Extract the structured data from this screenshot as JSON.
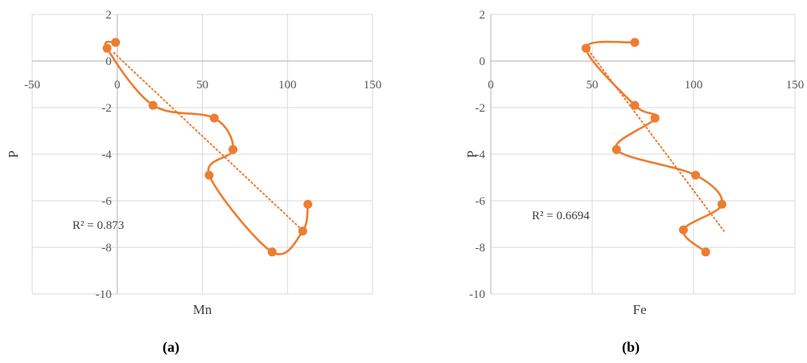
{
  "chart_data": [
    {
      "type": "scatter",
      "caption": "(a)",
      "xlabel": "Mn",
      "ylabel": "P",
      "xlim": [
        -50,
        150
      ],
      "ylim": [
        -10,
        2
      ],
      "xticks": [
        -50,
        0,
        50,
        100,
        150
      ],
      "yticks": [
        -10,
        -8,
        -6,
        -4,
        -2,
        0,
        2
      ],
      "grid": true,
      "series": [
        {
          "style": "smoothed line with markers",
          "color": "#ED7D31",
          "x": [
            -1,
            -6,
            21,
            57,
            68,
            54,
            91,
            109,
            112
          ],
          "y": [
            0.8,
            0.55,
            -1.9,
            -2.45,
            -3.8,
            -4.9,
            -8.2,
            -7.3,
            -6.15
          ]
        }
      ],
      "trendline": {
        "style": "linear dotted",
        "color": "#ED7D31",
        "x": [
          -2,
          110
        ],
        "y": [
          0.35,
          -7.35
        ]
      },
      "annotation": "R² = 0.873"
    },
    {
      "type": "scatter",
      "caption": "(b)",
      "xlabel": "Fe",
      "ylabel": "P",
      "xlim": [
        0,
        150
      ],
      "ylim": [
        -10,
        2
      ],
      "xticks": [
        0,
        50,
        100,
        150
      ],
      "yticks": [
        -10,
        -8,
        -6,
        -4,
        -2,
        0,
        2
      ],
      "grid": true,
      "series": [
        {
          "style": "smoothed line with markers",
          "color": "#ED7D31",
          "x": [
            71,
            47,
            71,
            81,
            62,
            101,
            114,
            95,
            106
          ],
          "y": [
            0.8,
            0.55,
            -1.9,
            -2.45,
            -3.8,
            -4.9,
            -6.15,
            -7.25,
            -8.2
          ]
        }
      ],
      "trendline": {
        "style": "linear dotted",
        "color": "#ED7D31",
        "x": [
          47,
          115
        ],
        "y": [
          0.6,
          -7.3
        ]
      },
      "annotation": "R² = 0.6694"
    }
  ]
}
